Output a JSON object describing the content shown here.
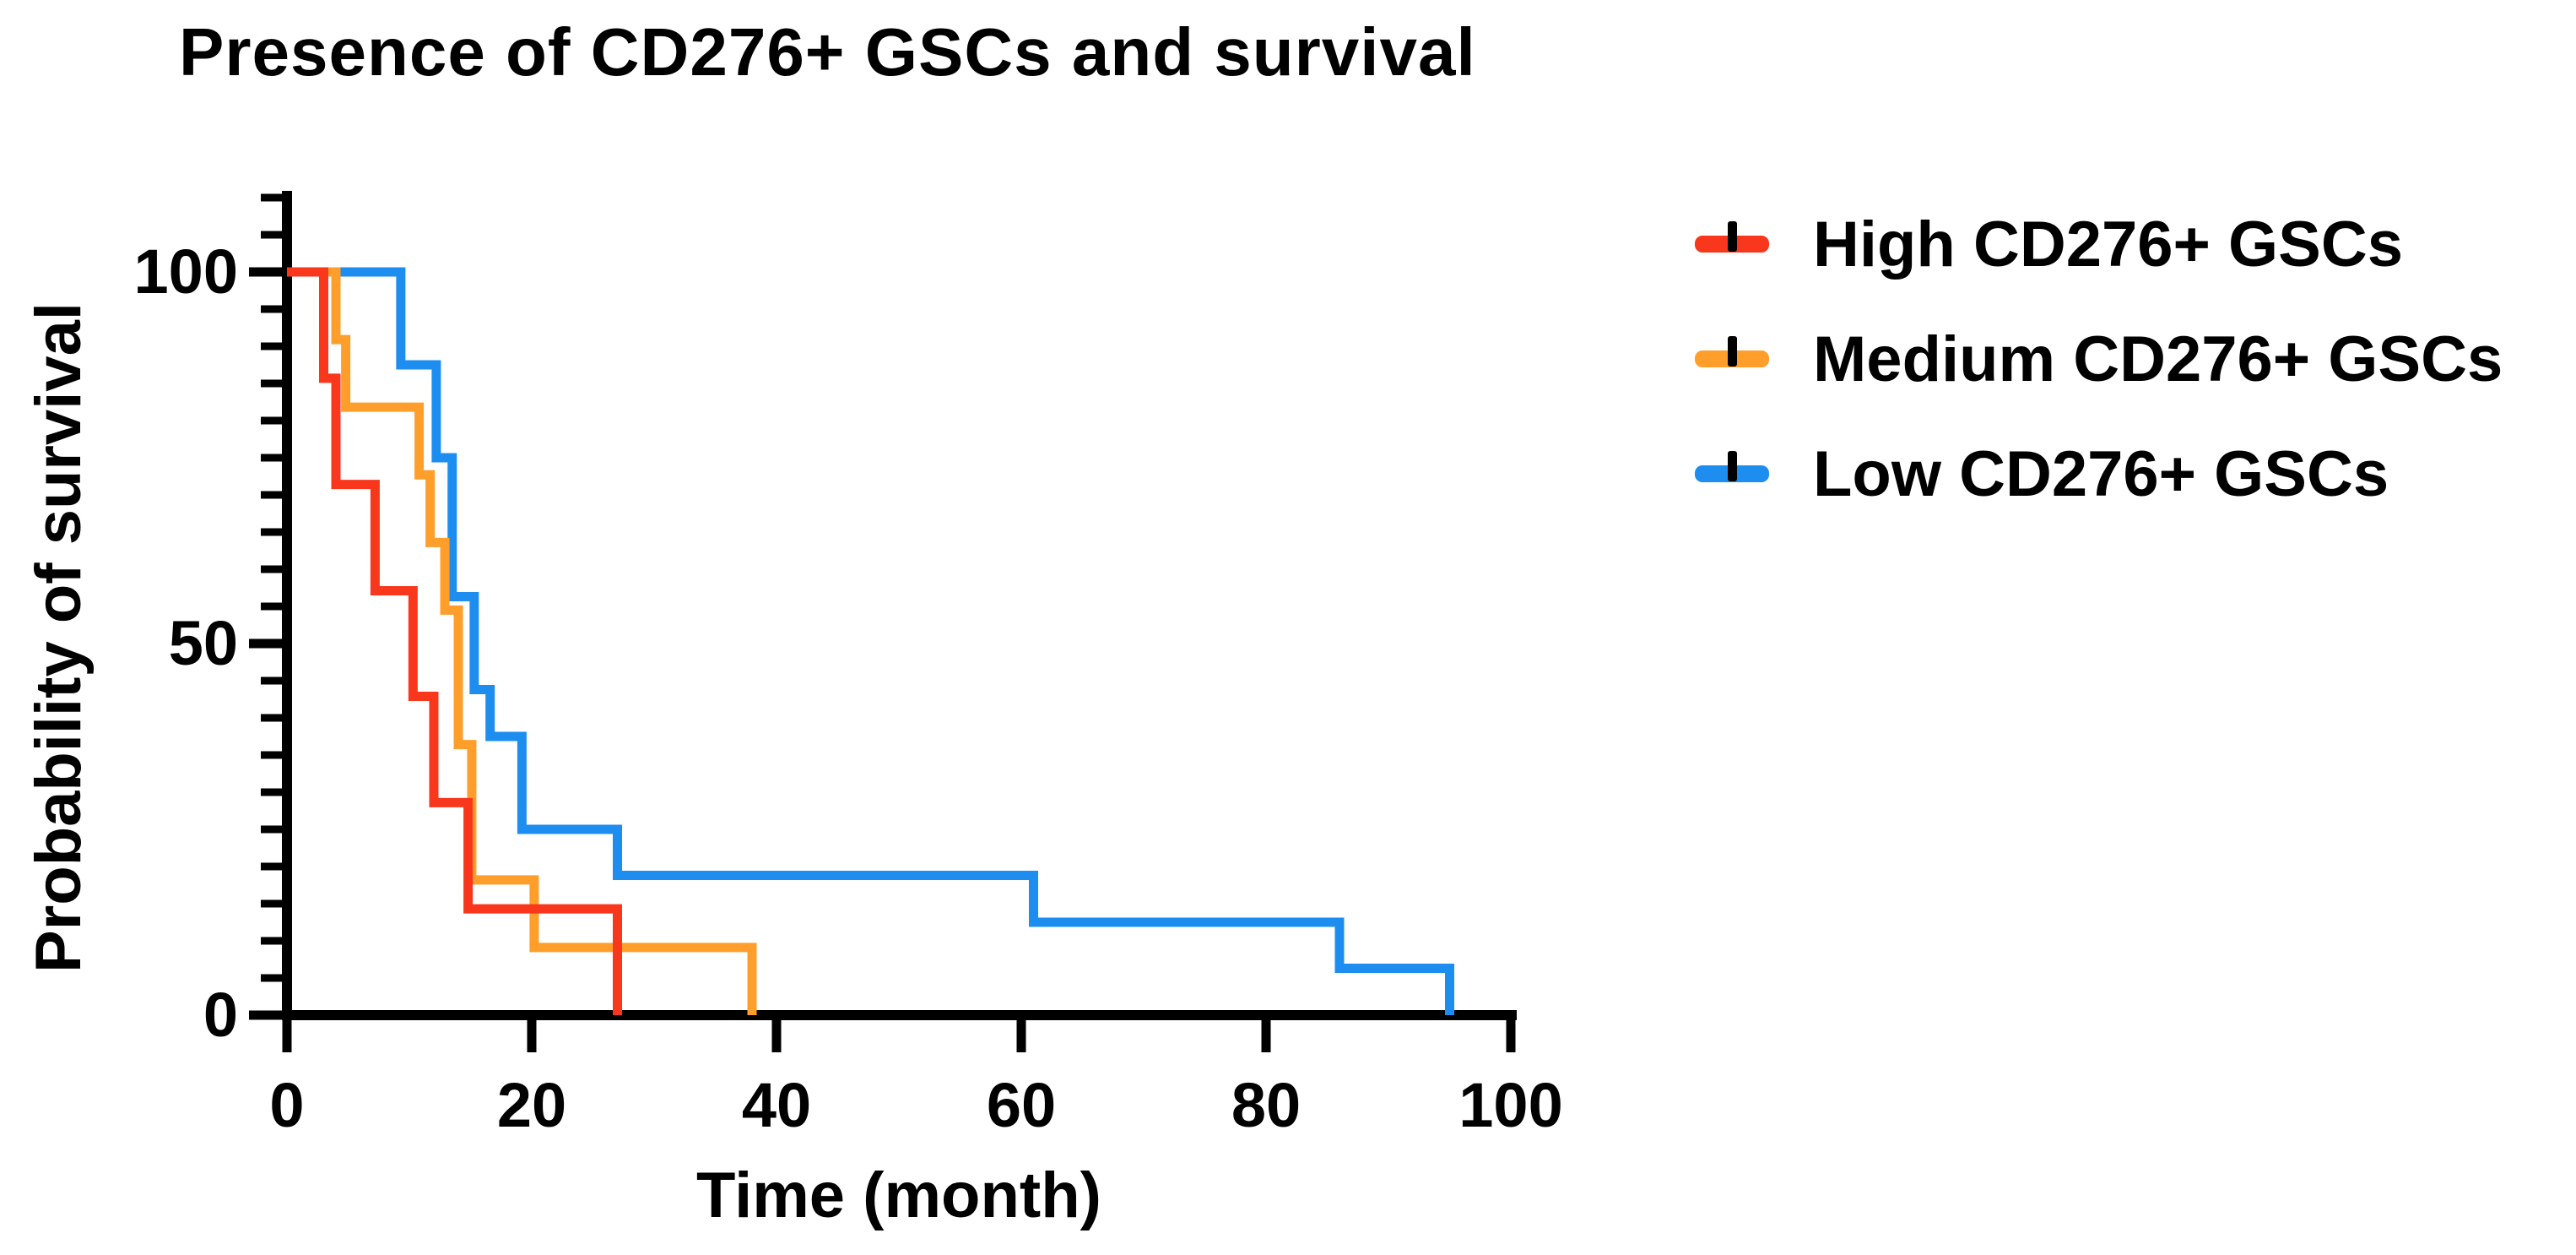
{
  "chart_data": {
    "type": "line",
    "subtype": "kaplan-meier-step-survival",
    "title": "Presence of CD276+ GSCs and survival",
    "xlabel": "Time (month)",
    "ylabel": "Probability of survival",
    "xlim": [
      0,
      100
    ],
    "ylim": [
      0,
      110
    ],
    "x_ticks": [
      0,
      20,
      40,
      60,
      80,
      100
    ],
    "y_ticks_major": [
      0,
      50,
      100
    ],
    "y_minor_tick_step": 5,
    "grid": false,
    "legend_position": "right-outside",
    "axis_color": "#000000",
    "series": [
      {
        "name": "High CD276+ GSCs",
        "color": "#F8371D",
        "start": [
          0,
          100
        ],
        "steps": [
          [
            3,
            85.7
          ],
          [
            4,
            71.4
          ],
          [
            7.2,
            57.1
          ],
          [
            10.3,
            42.9
          ],
          [
            12,
            28.6
          ],
          [
            14.8,
            14.3
          ],
          [
            27,
            0
          ]
        ]
      },
      {
        "name": "Medium CD276+ GSCs",
        "color": "#FF9E2A",
        "start": [
          0,
          100
        ],
        "steps": [
          [
            4,
            90.9
          ],
          [
            4.8,
            81.8
          ],
          [
            10.8,
            72.7
          ],
          [
            11.7,
            63.6
          ],
          [
            12.9,
            54.5
          ],
          [
            14,
            36.4
          ],
          [
            15.1,
            18.2
          ],
          [
            20.2,
            9.1
          ],
          [
            38,
            0
          ]
        ]
      },
      {
        "name": "Low CD276+ GSCs",
        "color": "#1D8EF0",
        "start": [
          0,
          100
        ],
        "steps": [
          [
            9.3,
            87.5
          ],
          [
            12.2,
            75
          ],
          [
            13.5,
            56.3
          ],
          [
            15.3,
            43.8
          ],
          [
            16.6,
            37.5
          ],
          [
            19.2,
            25
          ],
          [
            27,
            18.8
          ],
          [
            61,
            12.5
          ],
          [
            86,
            6.3
          ],
          [
            95,
            0
          ]
        ]
      }
    ]
  },
  "legend": {
    "items": [
      {
        "label": "High CD276+ GSCs",
        "color": "#F8371D",
        "censor_tick_color": "#000000"
      },
      {
        "label": "Medium CD276+ GSCs",
        "color": "#FF9E2A",
        "censor_tick_color": "#000000"
      },
      {
        "label": "Low CD276+ GSCs",
        "color": "#1D8EF0",
        "censor_tick_color": "#000000"
      }
    ]
  },
  "axes": {
    "x_tick_labels": [
      "0",
      "20",
      "40",
      "60",
      "80",
      "100"
    ],
    "y_tick_labels": [
      "0",
      "50",
      "100"
    ]
  }
}
